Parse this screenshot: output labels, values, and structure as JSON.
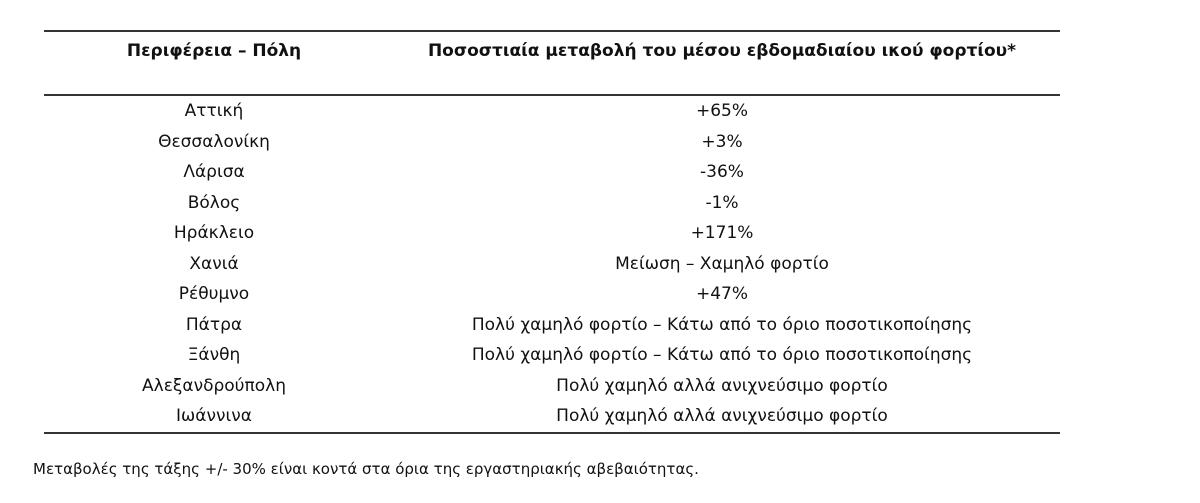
{
  "table": {
    "header": {
      "city": "Περιφέρεια – Πόλη",
      "change": "Ποσοστιαία μεταβολή του μέσου εβδομαδιαίου ικού φορτίου*"
    },
    "rows": [
      {
        "city": "Αττική",
        "change": "+65%"
      },
      {
        "city": "Θεσσαλονίκη",
        "change": "+3%"
      },
      {
        "city": "Λάρισα",
        "change": "-36%"
      },
      {
        "city": "Βόλος",
        "change": "-1%"
      },
      {
        "city": "Ηράκλειο",
        "change": "+171%"
      },
      {
        "city": "Χανιά",
        "change": "Μείωση – Χαμηλό φορτίο"
      },
      {
        "city": "Ρέθυμνο",
        "change": "+47%"
      },
      {
        "city": "Πάτρα",
        "change": "Πολύ χαμηλό φορτίο – Κάτω από το όριο ποσοτικοποίησης"
      },
      {
        "city": "Ξάνθη",
        "change": "Πολύ χαμηλό φορτίο – Κάτω από το όριο ποσοτικοποίησης"
      },
      {
        "city": "Αλεξανδρούπολη",
        "change": "Πολύ χαμηλό αλλά ανιχνεύσιμο φορτίο"
      },
      {
        "city": "Ιωάννινα",
        "change": "Πολύ χαμηλό αλλά ανιχνεύσιμο φορτίο"
      }
    ]
  },
  "footnote": "Μεταβολές της τάξης +/- 30% είναι κοντά στα όρια της εργαστηριακής αβεβαιότητας."
}
